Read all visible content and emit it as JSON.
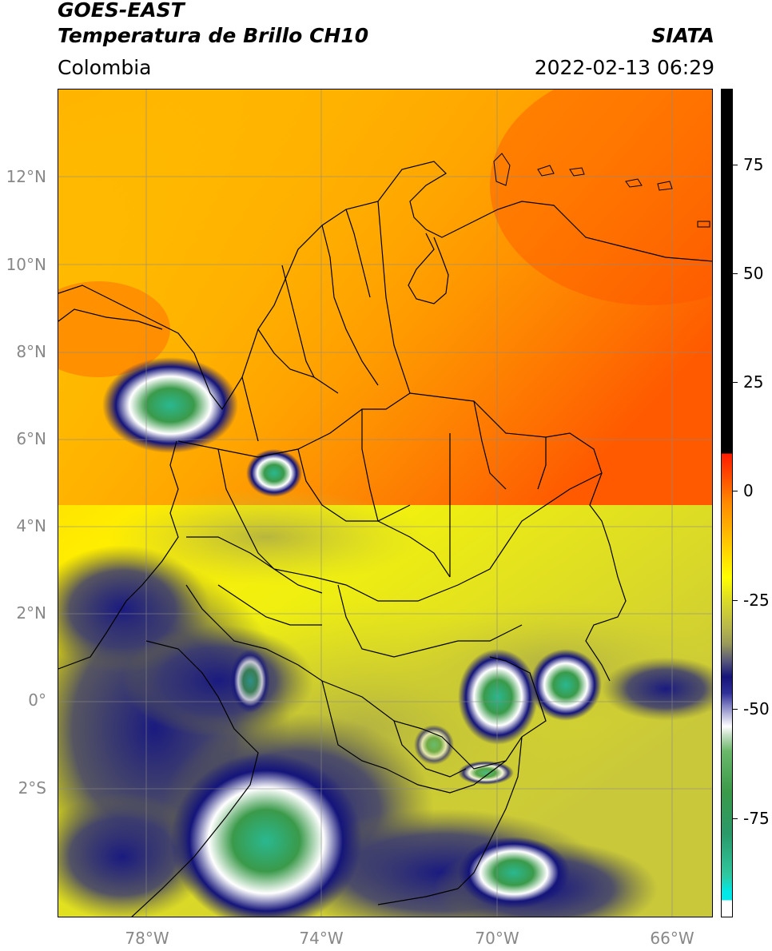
{
  "header": {
    "satellite": "GOES-EAST",
    "product": "Temperatura de Brillo CH10",
    "brand": "SIATA",
    "region": "Colombia",
    "timestamp": "2022-02-13 06:29"
  },
  "axes": {
    "lat_labels": [
      "12°N",
      "10°N",
      "8°N",
      "6°N",
      "4°N",
      "2°N",
      "0°",
      "2°S"
    ],
    "lon_labels": [
      "78°W",
      "74°W",
      "70°W",
      "66°W"
    ]
  },
  "colorbar": {
    "tick_labels": [
      "75",
      "50",
      "25",
      "0",
      "-25",
      "-50",
      "-75"
    ]
  },
  "colors": {
    "warm_orange": "#ff7a00",
    "yellow": "#ffff00",
    "olive": "#c8c83a",
    "navy": "#14147a",
    "white": "#ffffff",
    "green": "#3a9a4a",
    "teal": "#2ec8a0",
    "red": "#ff1a00",
    "black": "#000000"
  }
}
